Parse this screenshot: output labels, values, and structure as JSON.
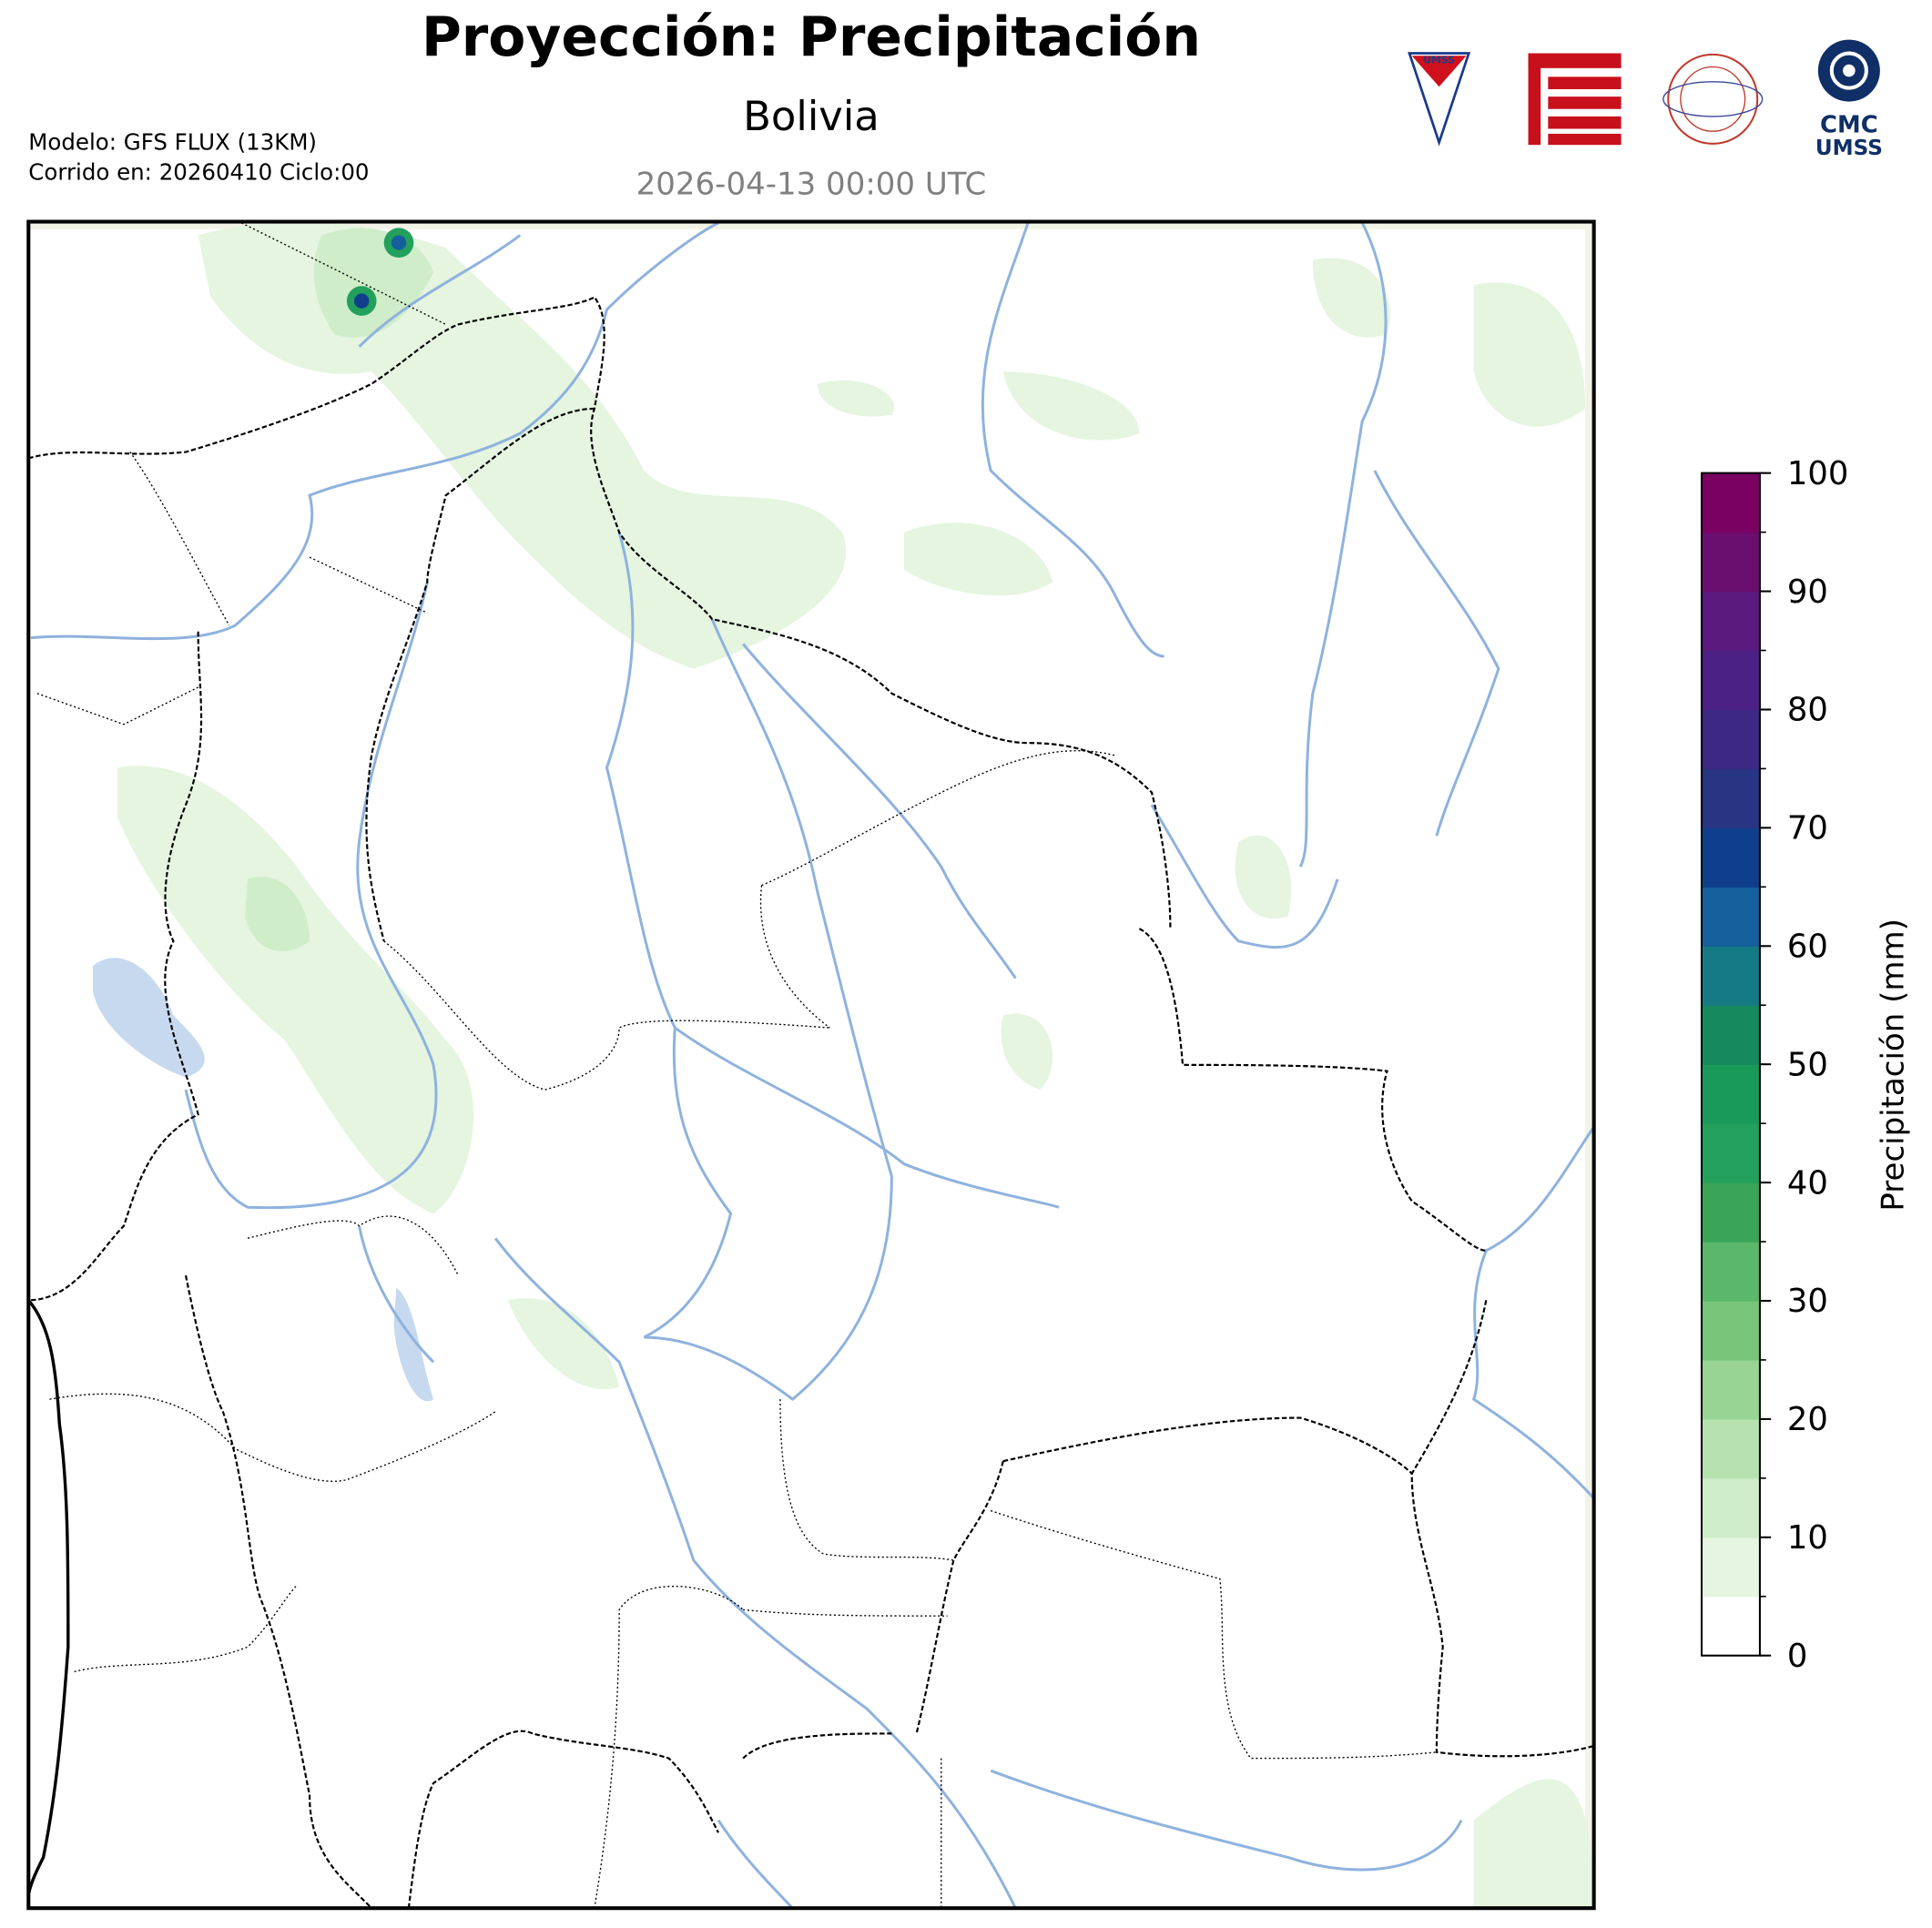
{
  "title": "Proyección: Precipitación",
  "subtitle": "Bolivia",
  "valid_time": "2026-04-13 00:00 UTC",
  "model_info": [
    "Modelo: GFS FLUX (13KM)",
    "Corrido en: 20260410 Ciclo:00"
  ],
  "logos": {
    "umss_shield": "UMSS",
    "cmc": [
      "CMC",
      "UMSS"
    ]
  },
  "colorbar": {
    "label": "Precipitación (mm)",
    "lim": [
      0,
      100
    ],
    "ticks": [
      0,
      10,
      20,
      30,
      40,
      50,
      60,
      70,
      80,
      90,
      100
    ],
    "levels": [
      0,
      5,
      10,
      15,
      20,
      25,
      30,
      35,
      40,
      45,
      50,
      55,
      60,
      65,
      70,
      75,
      80,
      85,
      90,
      95,
      100
    ],
    "colors": [
      "#ffffff",
      "#e5f5e0",
      "#d0edca",
      "#b6e2af",
      "#98d594",
      "#76c578",
      "#5bb86a",
      "#3aa458",
      "#22a05c",
      "#1a9a5a",
      "#168a5c",
      "#167a85",
      "#155f9c",
      "#0f3f8c",
      "#273582",
      "#3b2984",
      "#4b2185",
      "#5b1a7d",
      "#6a0f70",
      "#7a0162"
    ]
  }
}
